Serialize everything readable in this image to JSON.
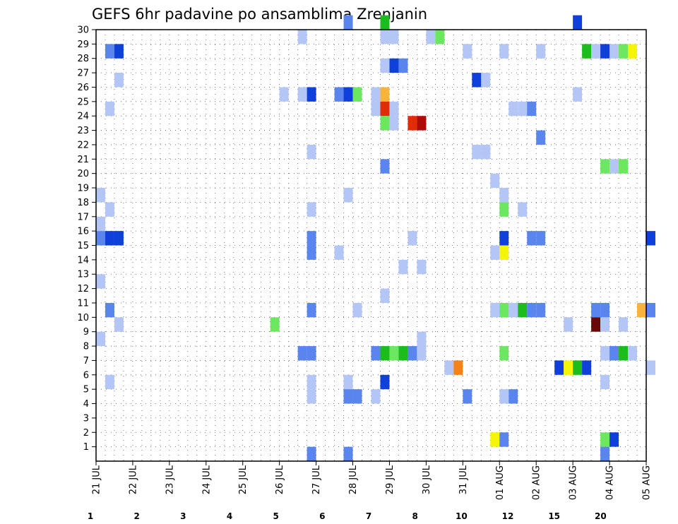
{
  "chart_data": {
    "type": "heatmap",
    "title": "GEFS 6hr padavine po ansamblima Zrenjanin",
    "x_ticks": [
      "21 JUL",
      "22 JUL",
      "23 JUL",
      "24 JUL",
      "25 JUL",
      "26 JUL",
      "27 JUL",
      "28 JUL",
      "29 JUL",
      "30 JUL",
      "31 JUL",
      "01 AUG",
      "02 AUG",
      "03 AUG",
      "04 AUG",
      "05 AUG"
    ],
    "y_ticks": [
      1,
      2,
      3,
      4,
      5,
      6,
      7,
      8,
      9,
      10,
      11,
      12,
      13,
      14,
      15,
      16,
      17,
      18,
      19,
      20,
      21,
      22,
      23,
      24,
      25,
      26,
      27,
      28,
      29,
      30
    ],
    "x_range": [
      0,
      60
    ],
    "y_range": [
      0,
      30
    ],
    "grid": true,
    "legend": {
      "position": "bottom",
      "labels": [
        "1",
        "2",
        "3",
        "4",
        "5",
        "6",
        "7",
        "8",
        "10",
        "12",
        "15",
        "20"
      ],
      "colors": [
        "#b3c6f5",
        "#5a85ee",
        "#1040dc",
        "#6ce860",
        "#1cbc1c",
        "#0a7a0a",
        "#f5f50a",
        "#f7b43c",
        "#f78214",
        "#e02d08",
        "#ad0c08",
        "#6a0808"
      ]
    },
    "cells": [
      [
        27,
        30,
        1
      ],
      [
        31,
        30,
        4
      ],
      [
        52,
        30,
        2
      ],
      [
        22,
        29,
        0
      ],
      [
        31,
        29,
        0
      ],
      [
        32,
        29,
        0
      ],
      [
        36,
        29,
        0
      ],
      [
        37,
        29,
        3
      ],
      [
        1,
        28,
        1
      ],
      [
        2,
        28,
        2
      ],
      [
        40,
        28,
        0
      ],
      [
        44,
        28,
        0
      ],
      [
        48,
        28,
        0
      ],
      [
        53,
        28,
        4
      ],
      [
        54,
        28,
        0
      ],
      [
        55,
        28,
        2
      ],
      [
        56,
        28,
        0
      ],
      [
        57,
        28,
        3
      ],
      [
        58,
        28,
        6
      ],
      [
        31,
        27,
        0
      ],
      [
        32,
        27,
        2
      ],
      [
        33,
        27,
        1
      ],
      [
        2,
        26,
        0
      ],
      [
        41,
        26,
        2
      ],
      [
        42,
        26,
        0
      ],
      [
        20,
        25,
        0
      ],
      [
        22,
        25,
        0
      ],
      [
        23,
        25,
        2
      ],
      [
        26,
        25,
        1
      ],
      [
        27,
        25,
        2
      ],
      [
        28,
        25,
        3
      ],
      [
        30,
        25,
        0
      ],
      [
        31,
        25,
        7
      ],
      [
        52,
        25,
        0
      ],
      [
        1,
        24,
        0
      ],
      [
        30,
        24,
        0
      ],
      [
        31,
        24,
        9
      ],
      [
        32,
        24,
        0
      ],
      [
        45,
        24,
        0
      ],
      [
        46,
        24,
        0
      ],
      [
        47,
        24,
        1
      ],
      [
        31,
        23,
        3
      ],
      [
        32,
        23,
        0
      ],
      [
        34,
        23,
        9
      ],
      [
        35,
        23,
        10
      ],
      [
        48,
        22,
        1
      ],
      [
        23,
        21,
        0
      ],
      [
        41,
        21,
        0
      ],
      [
        42,
        21,
        0
      ],
      [
        31,
        20,
        1
      ],
      [
        55,
        20,
        3
      ],
      [
        56,
        20,
        0
      ],
      [
        57,
        20,
        3
      ],
      [
        43,
        19,
        0
      ],
      [
        0,
        18,
        0
      ],
      [
        27,
        18,
        0
      ],
      [
        44,
        18,
        0
      ],
      [
        1,
        17,
        0
      ],
      [
        23,
        17,
        0
      ],
      [
        44,
        17,
        3
      ],
      [
        46,
        17,
        0
      ],
      [
        0,
        16,
        0
      ],
      [
        0,
        15,
        1
      ],
      [
        1,
        15,
        2
      ],
      [
        2,
        15,
        2
      ],
      [
        23,
        15,
        1
      ],
      [
        34,
        15,
        0
      ],
      [
        44,
        15,
        2
      ],
      [
        47,
        15,
        1
      ],
      [
        48,
        15,
        1
      ],
      [
        60,
        15,
        2
      ],
      [
        23,
        14,
        1
      ],
      [
        26,
        14,
        0
      ],
      [
        43,
        14,
        0
      ],
      [
        44,
        14,
        6
      ],
      [
        33,
        13,
        0
      ],
      [
        35,
        13,
        0
      ],
      [
        0,
        12,
        0
      ],
      [
        31,
        11,
        0
      ],
      [
        1,
        10,
        1
      ],
      [
        23,
        10,
        1
      ],
      [
        28,
        10,
        0
      ],
      [
        43,
        10,
        0
      ],
      [
        44,
        10,
        3
      ],
      [
        45,
        10,
        0
      ],
      [
        46,
        10,
        4
      ],
      [
        47,
        10,
        1
      ],
      [
        48,
        10,
        1
      ],
      [
        54,
        10,
        1
      ],
      [
        55,
        10,
        1
      ],
      [
        59,
        10,
        7
      ],
      [
        60,
        10,
        1
      ],
      [
        2,
        9,
        0
      ],
      [
        19,
        9,
        3
      ],
      [
        51,
        9,
        0
      ],
      [
        54,
        9,
        11
      ],
      [
        55,
        9,
        0
      ],
      [
        57,
        9,
        0
      ],
      [
        0,
        8,
        0
      ],
      [
        35,
        8,
        0
      ],
      [
        22,
        7,
        1
      ],
      [
        23,
        7,
        1
      ],
      [
        30,
        7,
        1
      ],
      [
        31,
        7,
        4
      ],
      [
        32,
        7,
        3
      ],
      [
        33,
        7,
        4
      ],
      [
        34,
        7,
        1
      ],
      [
        35,
        7,
        0
      ],
      [
        44,
        7,
        3
      ],
      [
        55,
        7,
        0
      ],
      [
        56,
        7,
        1
      ],
      [
        57,
        7,
        4
      ],
      [
        58,
        7,
        0
      ],
      [
        38,
        6,
        0
      ],
      [
        39,
        6,
        8
      ],
      [
        50,
        6,
        2
      ],
      [
        51,
        6,
        6
      ],
      [
        52,
        6,
        4
      ],
      [
        53,
        6,
        2
      ],
      [
        60,
        6,
        0
      ],
      [
        1,
        5,
        0
      ],
      [
        23,
        5,
        0
      ],
      [
        27,
        5,
        0
      ],
      [
        31,
        5,
        2
      ],
      [
        55,
        5,
        0
      ],
      [
        23,
        4,
        0
      ],
      [
        27,
        4,
        1
      ],
      [
        28,
        4,
        1
      ],
      [
        30,
        4,
        0
      ],
      [
        40,
        4,
        1
      ],
      [
        44,
        4,
        0
      ],
      [
        45,
        4,
        1
      ],
      [
        43,
        1,
        6
      ],
      [
        44,
        1,
        1
      ],
      [
        55,
        1,
        3
      ],
      [
        56,
        1,
        2
      ],
      [
        23,
        0,
        1
      ],
      [
        27,
        0,
        1
      ],
      [
        55,
        0,
        1
      ]
    ]
  }
}
